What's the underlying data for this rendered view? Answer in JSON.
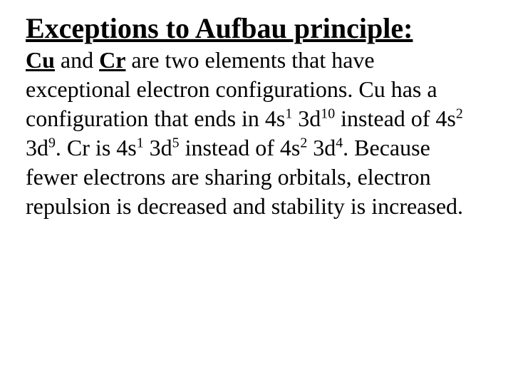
{
  "title": "Exceptions to Aufbau principle:",
  "body": {
    "t0": "Cu",
    "t1": " and ",
    "t2": "Cr",
    "t3": " are two elements that have exceptional electron configurations.  Cu has a configuration that ends in 4s",
    "s1": "1",
    "t4": " 3d",
    "s2": "10",
    "t5": " instead of 4s",
    "s3": "2",
    "t6": " 3d",
    "s4": "9",
    "t7": ".  Cr is 4s",
    "s5": "1",
    "t8": " 3d",
    "s6": "5",
    "t9": " instead of 4s",
    "s7": "2",
    "t10": " 3d",
    "s8": "4",
    "t11": ".  Because fewer electrons are sharing orbitals, electron repulsion is decreased and stability is increased."
  },
  "colors": {
    "background": "#ffffff",
    "text": "#000000"
  },
  "typography": {
    "title_fontsize_pt": 30,
    "body_fontsize_pt": 24,
    "font_family": "Times New Roman"
  }
}
